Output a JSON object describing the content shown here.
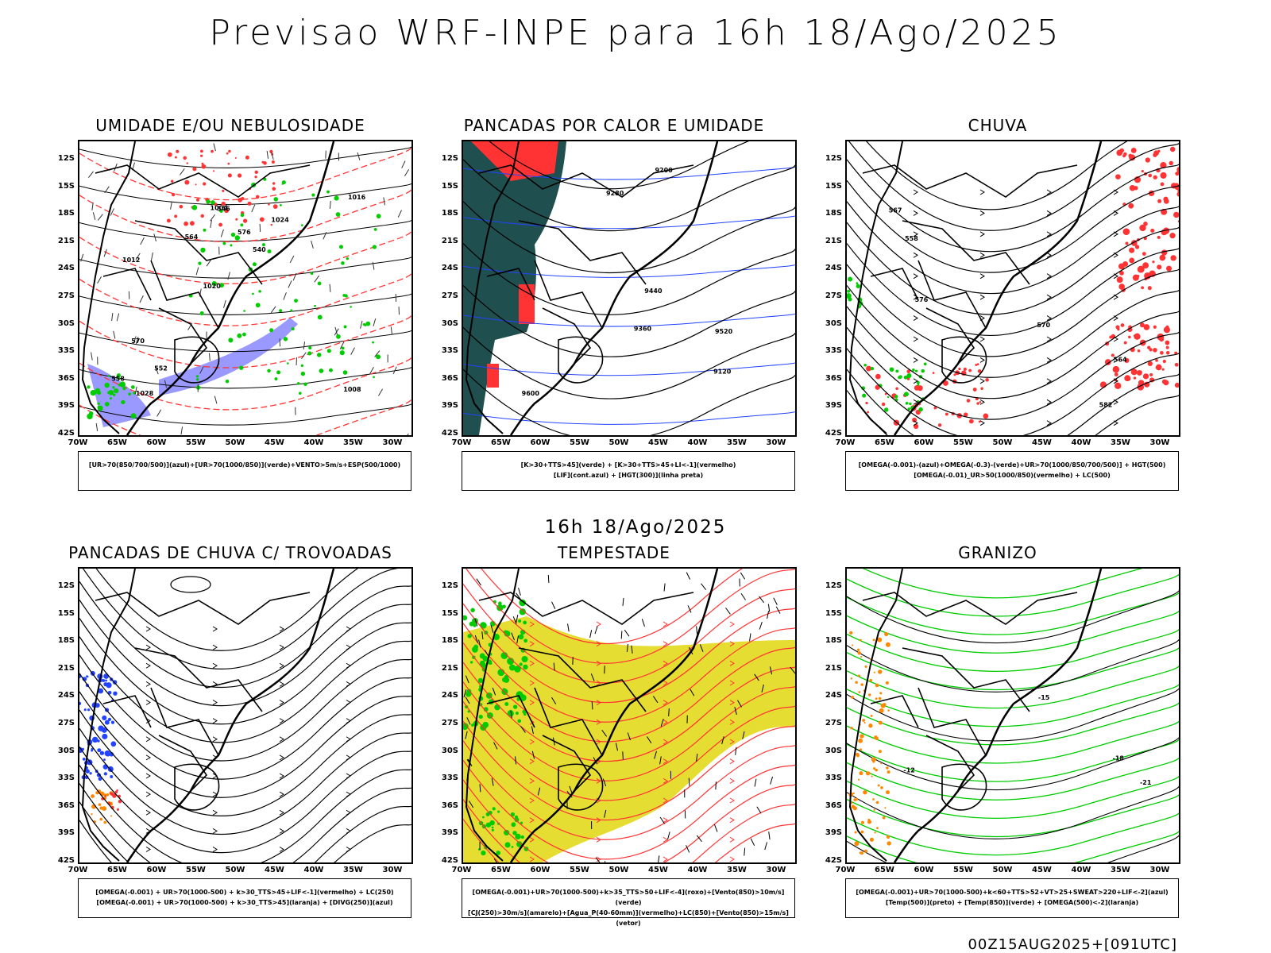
{
  "title": "Previsao WRF-INPE  para 16h 18/Ago/2025",
  "subtitle": "16h 18/Ago/2025",
  "footer": "00Z15AUG2025+[091UTC]",
  "axes": {
    "lat": [
      "12S",
      "15S",
      "18S",
      "21S",
      "24S",
      "27S",
      "30S",
      "33S",
      "36S",
      "39S",
      "42S"
    ],
    "lon": [
      "70W",
      "65W",
      "60W",
      "55W",
      "50W",
      "45W",
      "40W",
      "35W",
      "30W"
    ]
  },
  "colors": {
    "humid_blue": "#9999ff",
    "green": "#00cc00",
    "red": "#ff3333",
    "dark_teal": "#1f4f4f",
    "yellow": "#e6dd33",
    "orange": "#ff8800",
    "blue": "#2244ff"
  },
  "panels": [
    {
      "id": "umidade",
      "title": "UMIDADE E/OU NEBULOSIDADE",
      "legend": [
        "[UR>70(850/700/500)](azul)+[UR>70(1000/850)](verde)+VENTO>5m/s+ESP(500/1000)"
      ],
      "labels": [
        "1008",
        "1012",
        "1016",
        "1020",
        "1024",
        "1028",
        "1004",
        "576",
        "570",
        "564",
        "558",
        "552",
        "546",
        "540"
      ]
    },
    {
      "id": "pancadas_calor",
      "title": "PANCADAS POR CALOR E UMIDADE",
      "legend": [
        "[K>30+TTS>45](verde) + [K>30+TTS>45+LI<-1](vermelho)",
        "[LIF](cont.azul) + [HGT(300)](linha preta)"
      ],
      "labels": [
        "9600",
        "9520",
        "9440",
        "9360",
        "9280",
        "9200",
        "9120"
      ]
    },
    {
      "id": "chuva",
      "title": "CHUVA",
      "legend": [
        "[OMEGA(-0.001)-(azul)+OMEGA(-0.3)-(verde)+UR>70(1000/850/700/500)] + HGT(500)",
        "[OMEGA(-0.01)_UR>50(1000/850)(vermelho) + LC(500)"
      ],
      "labels": [
        "582",
        "576",
        "570",
        "567",
        "564",
        "558"
      ]
    },
    {
      "id": "trovoadas",
      "title": "PANCADAS DE CHUVA C/ TROVOADAS",
      "legend": [
        "[OMEGA(-0.001) + UR>70(1000-500) + k>30_TTS>45+LIF<-1](vermelho) + LC(250)",
        "[OMEGA(-0.001) + UR>70(1000-500) + k>30_TTS>45](laranja) + [DIVG(250)](azul)"
      ],
      "labels": []
    },
    {
      "id": "tempestade",
      "title": "TEMPESTADE",
      "legend": [
        "[OMEGA(-0.001)+UR>70(1000-500)+k>35_TTS>50+LIF<-4](roxo)+[Vento(850)>10m/s](verde)",
        "[CJ(250)>30m/s](amarelo)+[Agua_P(40-60mm)](vermelho)+LC(850)+[Vento(850)>15m/s](vetor)"
      ],
      "labels": []
    },
    {
      "id": "granizo",
      "title": "GRANIZO",
      "legend": [
        "[OMEGA(-0.001)+UR>70(1000-500)+k<60+TTS>52+VT>25+SWEAT>220+LIF<-2](azul)",
        "[Temp(500)](preto) + [Temp(850)](verde) + [OMEGA(500)<-2](laranja)"
      ],
      "labels": [
        "-12",
        "-15",
        "-18",
        "-21"
      ]
    }
  ]
}
